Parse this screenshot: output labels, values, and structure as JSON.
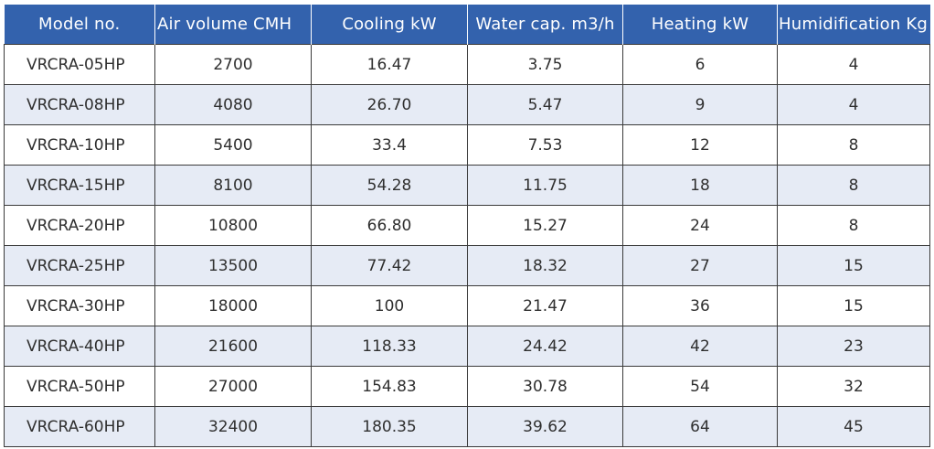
{
  "table": {
    "headers": [
      "Model no.",
      "Air volume CMH",
      "Cooling  kW",
      "Water cap. m3/h",
      "Heating kW",
      "Humidification Kg"
    ],
    "rows": [
      [
        "VRCRA-05HP",
        "2700",
        "16.47",
        "3.75",
        "6",
        "4"
      ],
      [
        "VRCRA-08HP",
        "4080",
        "26.70",
        "5.47",
        "9",
        "4"
      ],
      [
        "VRCRA-10HP",
        "5400",
        "33.4",
        "7.53",
        "12",
        "8"
      ],
      [
        "VRCRA-15HP",
        "8100",
        "54.28",
        "11.75",
        "18",
        "8"
      ],
      [
        "VRCRA-20HP",
        "10800",
        "66.80",
        "15.27",
        "24",
        "8"
      ],
      [
        "VRCRA-25HP",
        "13500",
        "77.42",
        "18.32",
        "27",
        "15"
      ],
      [
        "VRCRA-30HP",
        "18000",
        "100",
        "21.47",
        "36",
        "15"
      ],
      [
        "VRCRA-40HP",
        "21600",
        "118.33",
        "24.42",
        "42",
        "23"
      ],
      [
        "VRCRA-50HP",
        "27000",
        "154.83",
        "30.78",
        "54",
        "32"
      ],
      [
        "VRCRA-60HP",
        "32400",
        "180.35",
        "39.62",
        "64",
        "45"
      ]
    ]
  },
  "colors": {
    "header_bg": "#3362ad",
    "header_text": "#ffffff",
    "row_shade": "#e6ebf5",
    "border": "#3a3a3a"
  }
}
